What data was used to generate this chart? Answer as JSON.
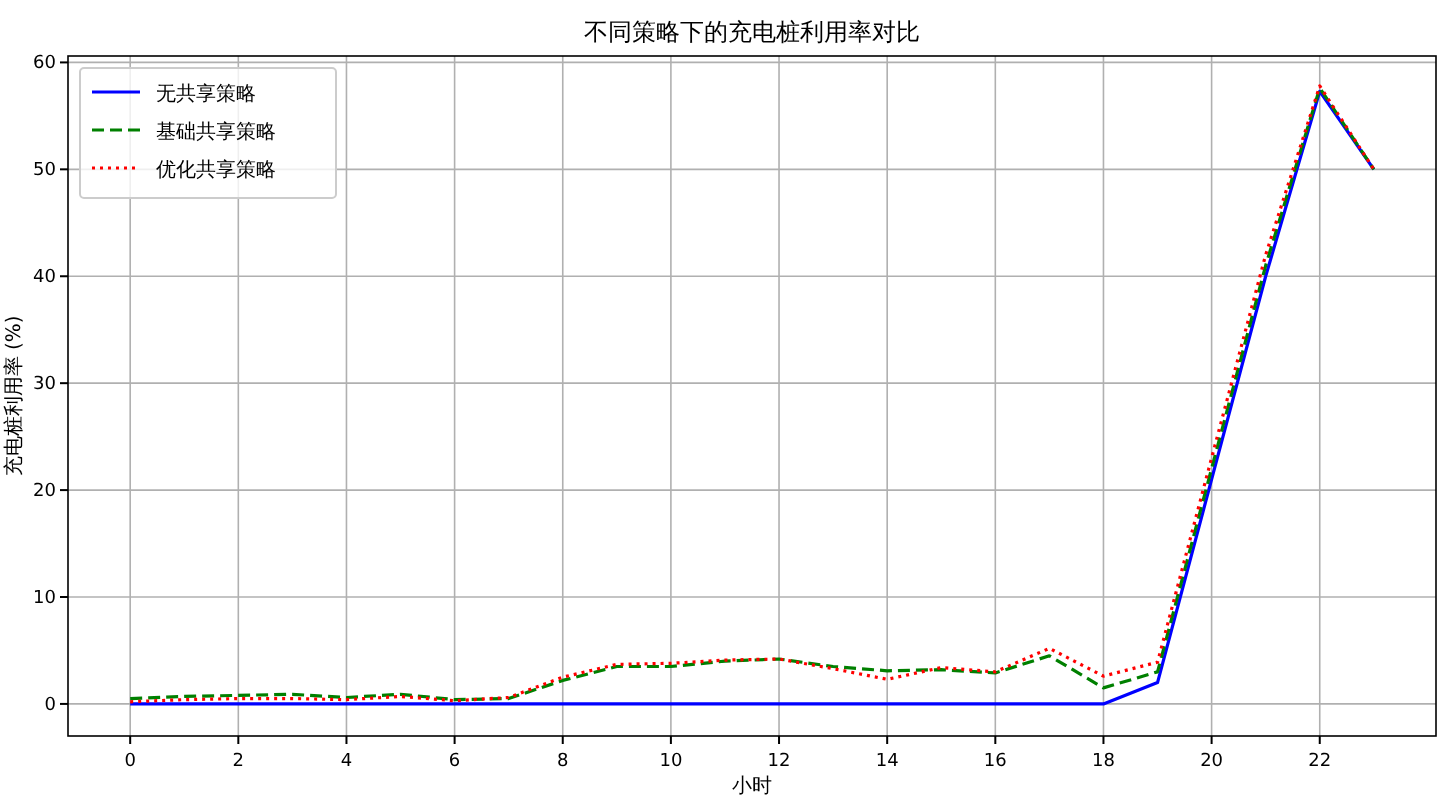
{
  "chart_data": {
    "type": "line",
    "title": "不同策略下的充电桩利用率对比",
    "xlabel": "小时",
    "ylabel": "充电桩利用率 (%)",
    "x": [
      0,
      1,
      2,
      3,
      4,
      5,
      6,
      7,
      8,
      9,
      10,
      11,
      12,
      13,
      14,
      15,
      16,
      17,
      18,
      19,
      20,
      21,
      22,
      23
    ],
    "series": [
      {
        "name": "无共享策略",
        "color": "#0000ff",
        "line_style": "solid",
        "values": [
          0,
          0,
          0,
          0,
          0,
          0,
          0,
          0,
          0,
          0,
          0,
          0,
          0,
          0,
          0,
          0,
          0,
          0,
          0,
          2,
          21,
          40,
          57.3,
          50
        ]
      },
      {
        "name": "基础共享策略",
        "color": "#008000",
        "line_style": "dashed",
        "values": [
          0.5,
          0.7,
          0.8,
          0.9,
          0.6,
          0.9,
          0.4,
          0.5,
          2.2,
          3.5,
          3.5,
          4,
          4.2,
          3.5,
          3.1,
          3.2,
          2.9,
          4.5,
          1.5,
          3,
          22,
          41,
          57.6,
          50
        ]
      },
      {
        "name": "优化共享策略",
        "color": "#ff0000",
        "line_style": "dotted",
        "values": [
          0.2,
          0.4,
          0.5,
          0.5,
          0.4,
          0.7,
          0.3,
          0.6,
          2.5,
          3.7,
          3.8,
          4.1,
          4.2,
          3.3,
          2.3,
          3.4,
          3,
          5.2,
          2.6,
          3.9,
          23,
          42,
          57.8,
          50
        ]
      }
    ],
    "xlim": [
      -1.15,
      24.15
    ],
    "ylim": [
      -3,
      60.6
    ],
    "xticks": [
      0,
      2,
      4,
      6,
      8,
      10,
      12,
      14,
      16,
      18,
      20,
      22
    ],
    "yticks": [
      0,
      10,
      20,
      30,
      40,
      50,
      60
    ],
    "grid": true,
    "legend": "top left",
    "marker": "none"
  }
}
